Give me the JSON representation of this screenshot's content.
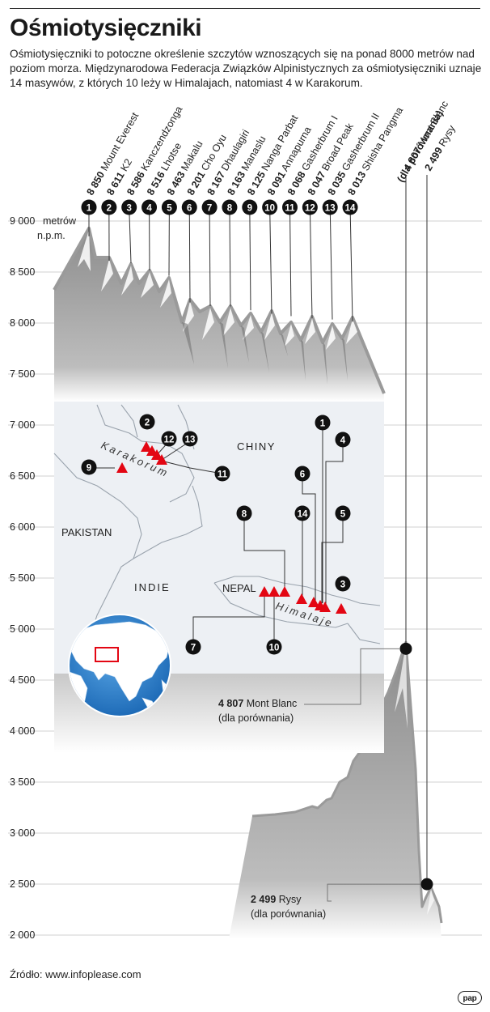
{
  "title": "Ośmiotysięczniki",
  "description": "Ośmiotysięczniki to potoczne określenie szczytów wznoszących się na ponad 8000 metrów nad poziom morza. Międzynarodowa Federacja Związków Alpinistycznych za ośmiotysięczniki uznaje 14 masywów, z których 10 leży w Himalajach, natomiast 4 w Karakorum.",
  "source": "Źródło: www.infoplease.com",
  "logo": "pap",
  "chart_data": {
    "type": "bar",
    "title": "",
    "ylabel": "metrów n.p.m.",
    "ylabel_lines": [
      "metrów",
      "n.p.m."
    ],
    "ylim": [
      2000,
      9000
    ],
    "yticks": [
      9000,
      8500,
      8000,
      7500,
      7000,
      6500,
      6000,
      5500,
      5000,
      4500,
      4000,
      3500,
      3000,
      2500,
      2000
    ],
    "ytick_labels": [
      "9 000",
      "8 500",
      "8 000",
      "7 500",
      "7 000",
      "6 500",
      "6 000",
      "5 500",
      "5 000",
      "4 500",
      "4 000",
      "3 500",
      "3 000",
      "2 500",
      "2 000"
    ],
    "grid": true,
    "peaks": [
      {
        "no": "1",
        "height": 8850,
        "height_label": "8 850",
        "name": "Mount Everest"
      },
      {
        "no": "2",
        "height": 8611,
        "height_label": "8 611",
        "name": "K2"
      },
      {
        "no": "3",
        "height": 8586,
        "height_label": "8 586",
        "name": "Kanczendzonga"
      },
      {
        "no": "4",
        "height": 8516,
        "height_label": "8 516",
        "name": "Lhotse"
      },
      {
        "no": "5",
        "height": 8463,
        "height_label": "8 463",
        "name": "Makalu"
      },
      {
        "no": "6",
        "height": 8201,
        "height_label": "8 201",
        "name": "Cho Oyu"
      },
      {
        "no": "7",
        "height": 8167,
        "height_label": "8 167",
        "name": "Dhaulagiri"
      },
      {
        "no": "8",
        "height": 8163,
        "height_label": "8 163",
        "name": "Manaslu"
      },
      {
        "no": "9",
        "height": 8125,
        "height_label": "8 125",
        "name": "Nanga Parbat"
      },
      {
        "no": "10",
        "height": 8091,
        "height_label": "8 091",
        "name": "Annapurna"
      },
      {
        "no": "11",
        "height": 8068,
        "height_label": "8 068",
        "name": "Gasherbrum I"
      },
      {
        "no": "12",
        "height": 8047,
        "height_label": "8 047",
        "name": "Broad Peak"
      },
      {
        "no": "13",
        "height": 8035,
        "height_label": "8 035",
        "name": "Gasherbrum II"
      },
      {
        "no": "14",
        "height": 8013,
        "height_label": "8 013",
        "name": "Shisha Pangma"
      }
    ],
    "comparison_header": "(dla porównania)",
    "comparison": [
      {
        "height": 4807,
        "height_label": "4 807",
        "name": "Mont Blanc",
        "note": "(dla porównania)"
      },
      {
        "height": 2499,
        "height_label": "2 499",
        "name": "Rysy",
        "note": "(dla porównania)"
      }
    ],
    "map": {
      "labels": {
        "china": "CHINY",
        "pakistan": "PAKISTAN",
        "india": "INDIE",
        "nepal": "NEPAL",
        "karakorum": "Karakorum",
        "himalaje": "Himalaje"
      },
      "karakorum_markers": [
        "2",
        "12",
        "13",
        "9",
        "11"
      ],
      "himalaya_markers": [
        "1",
        "4",
        "6",
        "14",
        "5",
        "8",
        "3",
        "7",
        "10"
      ]
    },
    "colors": {
      "marker": "#e30613",
      "mountain": "#999999",
      "map_bg": "#edf0f4",
      "globe_ocean": "#2a82d2"
    }
  }
}
